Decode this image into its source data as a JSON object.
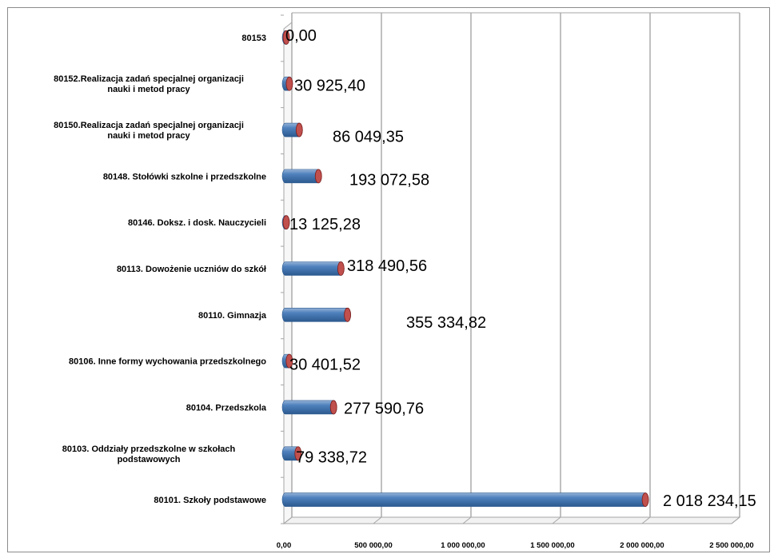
{
  "chart_data": {
    "type": "bar",
    "orientation": "horizontal",
    "style": "3d-cylinder",
    "title": "",
    "xlabel": "",
    "ylabel": "",
    "grid": true,
    "legend": "none",
    "xlim": [
      0,
      2500000
    ],
    "x_ticks": [
      0,
      500000,
      1000000,
      1500000,
      2000000,
      2500000
    ],
    "x_tick_labels": [
      "0,00",
      "500 000,00",
      "1 000 000,00",
      "1 500 000,00",
      "2 000 000,00",
      "2 500 000,00"
    ],
    "categories": [
      [
        "80153"
      ],
      [
        "80152.Realizacja zadań specjalnej organizacji",
        "nauki i metod pracy"
      ],
      [
        "80150.Realizacja zadań specjalnej organizacji",
        "nauki i metod pracy"
      ],
      [
        "80148. Stołówki szkolne i przedszkolne"
      ],
      [
        "80146. Doksz. i dosk. Nauczycieli"
      ],
      [
        "80113. Dowożenie uczniów do szkół"
      ],
      [
        "80110. Gimnazja"
      ],
      [
        "80106. Inne formy wychowania przedszkolnego"
      ],
      [
        "80104. Przedszkola"
      ],
      [
        "80103. Oddziały przedszkolne w szkołach",
        "podstawowych"
      ],
      [
        "80101. Szkoły podstawowe"
      ]
    ],
    "values": [
      0.0,
      30925.4,
      86049.35,
      193072.58,
      13125.28,
      318490.56,
      355334.82,
      30401.52,
      277590.76,
      79338.72,
      2018234.15
    ],
    "value_labels": [
      "0,00",
      "30 925,40",
      "86 049,35",
      "193 072,58",
      "13 125,28",
      "318 490,56",
      "355 334,82",
      "30 401,52",
      "277 590,76",
      "79 338,72",
      "2 018 234,15"
    ],
    "colors": {
      "bar": "#4f81bd",
      "bar_light": "#95b3d7",
      "bar_dark": "#2c5a8f",
      "cap": "#c0504d",
      "cap_dark": "#7f1c1a",
      "grid": "#a6a6a6"
    }
  }
}
